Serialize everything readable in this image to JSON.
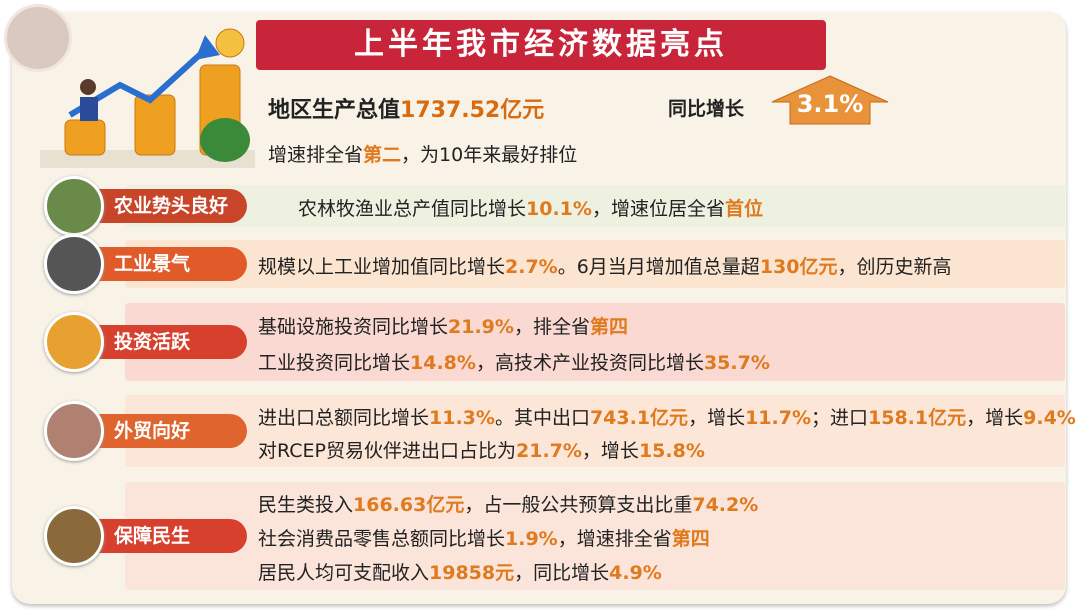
{
  "header": {
    "title": "上半年我市经济数据亮点"
  },
  "headline": {
    "gdp_label": "地区生产总值",
    "gdp_value": "1737.52亿元",
    "growth_label": "同比增长",
    "growth_value": "3.1%",
    "rank_line": [
      "增速排全省",
      "第二",
      "，为10年来最好排位"
    ]
  },
  "sections": [
    {
      "label": "农业势头良好",
      "lines": [
        [
          "农林牧渔业总产值同比增长",
          "10.1%",
          "，增速位居全省",
          "首位"
        ]
      ]
    },
    {
      "label": "工业景气",
      "lines": [
        [
          "规模以上工业增加值同比增长",
          "2.7%",
          "。6月当月增加值总量超",
          "130亿元",
          "，创历史新高"
        ]
      ]
    },
    {
      "label": "投资活跃",
      "lines": [
        [
          "基础设施投资同比增长",
          "21.9%",
          "，排全省",
          "第四"
        ],
        [
          "工业投资同比增长",
          "14.8%",
          "，高技术产业投资同比增长",
          "35.7%"
        ]
      ]
    },
    {
      "label": "外贸向好",
      "lines": [
        [
          "进出口总额同比增长",
          "11.3%",
          "。其中出口",
          "743.1亿元",
          "，增长",
          "11.7%",
          "；进口",
          "158.1亿元",
          "，增长",
          "9.4%"
        ],
        [
          "对RCEP贸易伙伴进出口占比为",
          "21.7%",
          "，增长",
          "15.8%"
        ]
      ]
    },
    {
      "label": "保障民生",
      "lines": [
        [
          "民生类投入",
          "166.63亿元",
          "，占一般公共预算支出比重",
          "74.2%"
        ],
        [
          "社会消费品零售总额同比增长",
          "1.9%",
          "，增速排全省",
          "第四"
        ],
        [
          "居民人均可支配收入",
          "19858元",
          "，同比增长",
          "4.9%"
        ]
      ]
    }
  ]
}
